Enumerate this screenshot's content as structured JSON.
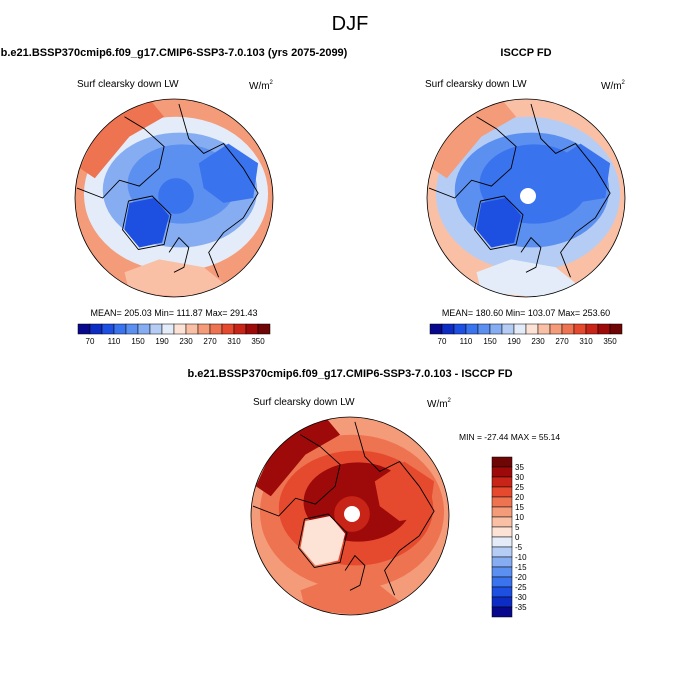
{
  "figure": {
    "title": "DJF"
  },
  "chart_data": [
    {
      "type": "heatmap",
      "projection": "polar stereographic (north)",
      "panel_title": "b.e21.BSSP370cmip6.f09_g17.CMIP6-SSP3-7.0.103 (yrs 2075-2099)",
      "variable": "Surf clearsky down LW",
      "units_base": "W/m",
      "units_exp": "2",
      "stats_text": "MEAN= 205.03  Min= 111.87  Max= 291.43",
      "colorbar": {
        "orientation": "horizontal",
        "levels": [
          70,
          90,
          110,
          130,
          150,
          170,
          190,
          210,
          230,
          250,
          270,
          290,
          310,
          330,
          350
        ],
        "tick_labels": [
          "70",
          "110",
          "150",
          "190",
          "230",
          "270",
          "310",
          "350"
        ],
        "colors": [
          "#08088c",
          "#0c2cc4",
          "#1d4fe0",
          "#3a73ee",
          "#5b8ff0",
          "#86adf1",
          "#b5cdf4",
          "#e3ecf8",
          "#fde2d6",
          "#f9c0a6",
          "#f49b7a",
          "#ee7351",
          "#e54a2e",
          "#c92418",
          "#9e0a0a",
          "#6e0606"
        ]
      },
      "field_colors": {
        "center": "#3a73ee",
        "arctic": "#5b8ff0",
        "midlat": "#86adf1",
        "south": "#e3ecf8",
        "edge_warm": "#f49b7a",
        "greenland": "#1d4fe0",
        "canada": "#3a73ee",
        "pacific": "#ee7351",
        "europe": "#f9c0a6"
      }
    },
    {
      "type": "heatmap",
      "projection": "polar stereographic (north)",
      "panel_title": "ISCCP FD",
      "variable": "Surf clearsky down LW",
      "units_base": "W/m",
      "units_exp": "2",
      "stats_text": "MEAN= 180.60  Min= 103.07  Max= 253.60",
      "colorbar": {
        "orientation": "horizontal",
        "levels": [
          70,
          90,
          110,
          130,
          150,
          170,
          190,
          210,
          230,
          250,
          270,
          290,
          310,
          330,
          350
        ],
        "tick_labels": [
          "70",
          "110",
          "150",
          "190",
          "230",
          "270",
          "310",
          "350"
        ],
        "colors": [
          "#08088c",
          "#0c2cc4",
          "#1d4fe0",
          "#3a73ee",
          "#5b8ff0",
          "#86adf1",
          "#b5cdf4",
          "#e3ecf8",
          "#fde2d6",
          "#f9c0a6",
          "#f49b7a",
          "#ee7351",
          "#e54a2e",
          "#c92418",
          "#9e0a0a",
          "#6e0606"
        ]
      },
      "field_colors": {
        "center": "#3a73ee",
        "arctic": "#3a73ee",
        "midlat": "#5b8ff0",
        "south": "#b5cdf4",
        "edge_warm": "#f9c0a6",
        "greenland": "#1d4fe0",
        "canada": "#3a73ee",
        "pacific": "#f49b7a",
        "europe": "#e3ecf8"
      },
      "missing_pole": true
    },
    {
      "type": "heatmap",
      "projection": "polar stereographic (north)",
      "panel_title": "b.e21.BSSP370cmip6.f09_g17.CMIP6-SSP3-7.0.103 - ISCCP FD",
      "variable": "Surf clearsky down LW",
      "units_base": "W/m",
      "units_exp": "2",
      "stats_text": "MIN = -27.44 MAX =  55.14",
      "colorbar": {
        "orientation": "vertical",
        "levels": [
          -35,
          -30,
          -25,
          -20,
          -15,
          -10,
          -5,
          0,
          5,
          10,
          15,
          20,
          25,
          30,
          35
        ],
        "tick_labels": [
          "35",
          "30",
          "25",
          "20",
          "15",
          "10",
          "5",
          "0",
          "-5",
          "-10",
          "-15",
          "-20",
          "-25",
          "-30",
          "-35"
        ],
        "colors": [
          "#08088c",
          "#0c2cc4",
          "#1d4fe0",
          "#3a73ee",
          "#5b8ff0",
          "#86adf1",
          "#b5cdf4",
          "#e3ecf8",
          "#fde2d6",
          "#f9c0a6",
          "#f49b7a",
          "#ee7351",
          "#e54a2e",
          "#c92418",
          "#9e0a0a",
          "#6e0606"
        ]
      },
      "field_colors": {
        "center": "#c92418",
        "arctic": "#9e0a0a",
        "midlat": "#e54a2e",
        "south": "#ee7351",
        "edge_warm": "#f49b7a",
        "greenland": "#fde2d6",
        "canada": "#e54a2e",
        "pacific": "#9e0a0a",
        "europe": "#ee7351"
      },
      "missing_pole": true
    }
  ]
}
